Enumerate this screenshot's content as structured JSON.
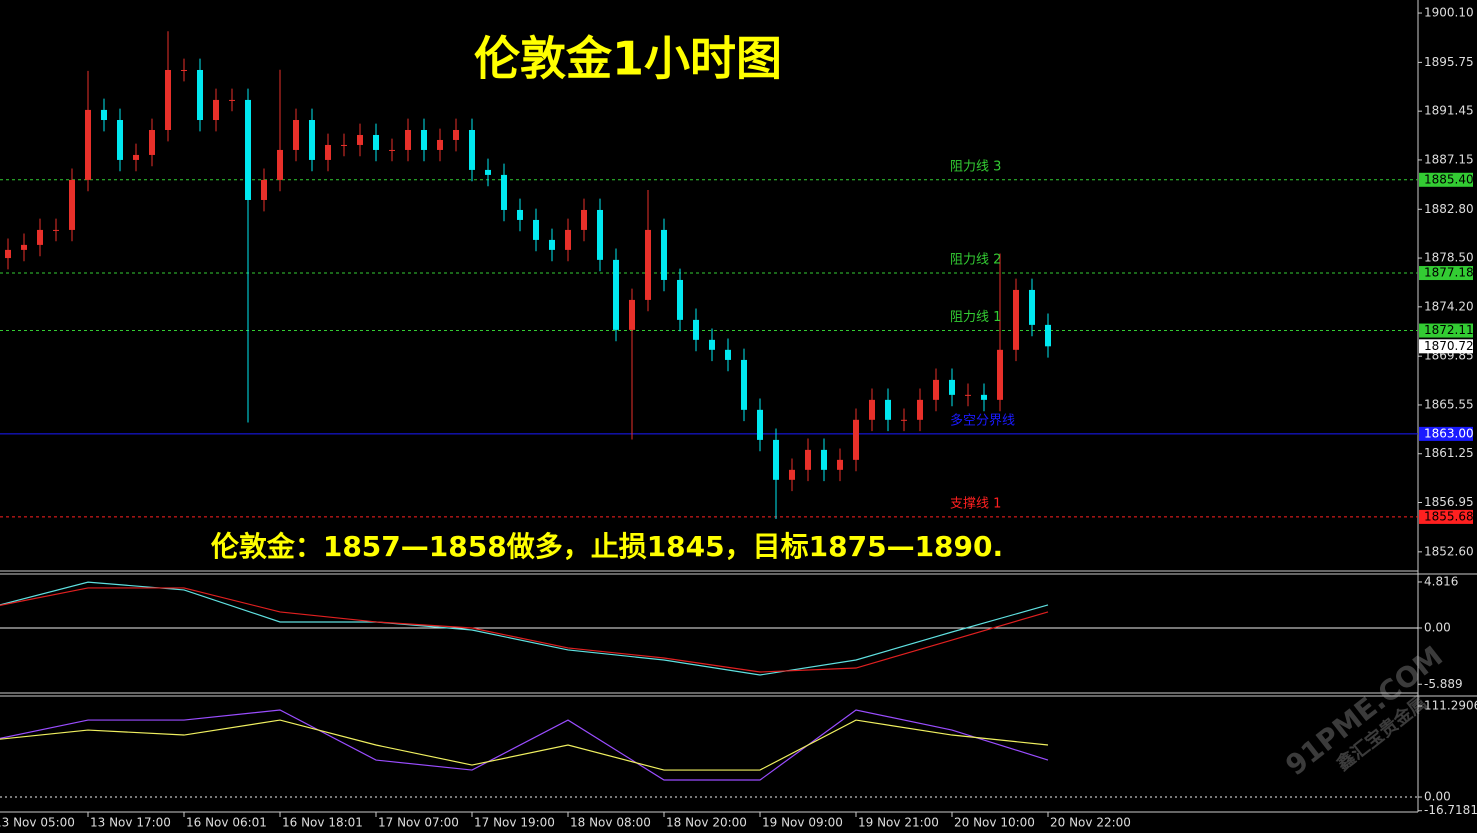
{
  "chart_data": [
    {
      "type": "candlestick",
      "title": "伦敦金1小时图",
      "annotation": "伦敦金：1857—1858做多，止损1845，目标1875—1890.",
      "categories": [
        "13 Nov 05:00",
        null,
        null,
        null,
        null,
        null,
        "13 Nov 17:00",
        null,
        null,
        null,
        null,
        null,
        "16 Nov 06:01",
        null,
        null,
        null,
        null,
        null,
        "16 Nov 18:01",
        null,
        null,
        null,
        null,
        null,
        "17 Nov 07:00",
        null,
        null,
        null,
        null,
        null,
        "17 Nov 19:00",
        null,
        null,
        null,
        null,
        null,
        "18 Nov 08:00",
        null,
        null,
        null,
        null,
        null,
        "18 Nov 20:00",
        null,
        null,
        null,
        null,
        null,
        "19 Nov 09:00",
        null,
        null,
        null,
        null,
        null,
        "19 Nov 21:00",
        null,
        null,
        null,
        null,
        null,
        "20 Nov 10:00",
        null,
        null,
        null,
        null,
        null,
        "20 Nov 22:00"
      ],
      "open": [
        1879.0,
        1878.5,
        1879.22,
        1879.66,
        1880.98,
        1880.98,
        1885.39,
        1891.56,
        1890.67,
        1887.15,
        1887.59,
        1889.79,
        1895.08,
        1895.08,
        1890.67,
        1892.44,
        1892.44,
        1883.62,
        1885.39,
        1888.03,
        1890.67,
        1887.15,
        1888.47,
        1888.47,
        1889.35,
        1888.03,
        1888.03,
        1889.79,
        1888.03,
        1888.91,
        1889.79,
        1886.27,
        1885.83,
        1882.74,
        1881.86,
        1880.1,
        1879.22,
        1880.98,
        1882.74,
        1878.34,
        1872.17,
        1874.81,
        1880.98,
        1876.57,
        1873.05,
        1871.29,
        1870.41,
        1869.52,
        1865.12,
        1862.47,
        1858.95,
        1859.83,
        1861.59,
        1859.83,
        1860.71,
        1864.24,
        1866.0,
        1864.24,
        1864.24,
        1866.0,
        1867.76,
        1866.44,
        1866.44,
        1866.0,
        1870.41,
        1875.69,
        1872.61
      ],
      "high": [
        1880.0,
        1880.22,
        1880.66,
        1881.98,
        1881.98,
        1886.39,
        1895.0,
        1892.56,
        1891.67,
        1888.59,
        1890.79,
        1898.5,
        1896.08,
        1896.08,
        1893.44,
        1893.44,
        1893.44,
        1886.39,
        1895.1,
        1891.67,
        1891.67,
        1889.47,
        1889.47,
        1890.35,
        1890.35,
        1889.03,
        1890.79,
        1890.79,
        1889.91,
        1890.79,
        1890.79,
        1887.27,
        1886.83,
        1883.74,
        1882.86,
        1881.1,
        1881.98,
        1883.74,
        1883.74,
        1879.34,
        1875.81,
        1884.5,
        1881.98,
        1877.57,
        1874.05,
        1872.29,
        1871.41,
        1870.52,
        1866.12,
        1863.47,
        1860.83,
        1862.59,
        1862.59,
        1861.71,
        1865.24,
        1867.0,
        1867.0,
        1865.24,
        1867.0,
        1868.76,
        1868.76,
        1867.44,
        1867.44,
        1878.9,
        1876.69,
        1876.69,
        1873.61
      ],
      "low": [
        1877.5,
        1877.5,
        1878.22,
        1878.66,
        1879.98,
        1879.98,
        1884.39,
        1889.67,
        1886.15,
        1886.15,
        1886.59,
        1888.79,
        1894.08,
        1889.67,
        1889.67,
        1891.44,
        1864.0,
        1882.62,
        1884.39,
        1887.03,
        1886.15,
        1886.15,
        1887.47,
        1887.47,
        1887.03,
        1887.03,
        1887.03,
        1887.03,
        1887.03,
        1887.91,
        1885.27,
        1884.83,
        1881.74,
        1880.86,
        1879.1,
        1878.22,
        1878.22,
        1879.98,
        1877.34,
        1871.17,
        1862.5,
        1873.81,
        1875.57,
        1872.05,
        1870.29,
        1869.41,
        1868.52,
        1864.12,
        1861.47,
        1855.5,
        1857.95,
        1858.83,
        1858.83,
        1858.83,
        1859.71,
        1863.24,
        1863.24,
        1863.24,
        1863.24,
        1865.0,
        1865.44,
        1865.44,
        1865.0,
        1865.0,
        1869.41,
        1871.61,
        1869.72
      ],
      "close": [
        1878.5,
        1879.22,
        1879.66,
        1880.98,
        1880.98,
        1885.39,
        1891.56,
        1890.67,
        1887.15,
        1887.59,
        1889.79,
        1895.08,
        1895.08,
        1890.67,
        1892.44,
        1892.44,
        1883.62,
        1885.39,
        1888.03,
        1890.67,
        1887.15,
        1888.47,
        1888.47,
        1889.35,
        1888.03,
        1888.03,
        1889.79,
        1888.03,
        1888.91,
        1889.79,
        1886.27,
        1885.83,
        1882.74,
        1881.86,
        1880.1,
        1879.22,
        1880.98,
        1882.74,
        1878.34,
        1872.17,
        1874.81,
        1880.98,
        1876.57,
        1873.05,
        1871.29,
        1870.41,
        1869.52,
        1865.12,
        1862.47,
        1858.95,
        1859.83,
        1861.59,
        1859.83,
        1860.71,
        1864.24,
        1866.0,
        1864.24,
        1864.24,
        1866.0,
        1867.76,
        1866.44,
        1866.44,
        1866.0,
        1870.41,
        1875.69,
        1872.61,
        1870.72
      ],
      "up_color": "#e8302a",
      "down_color": "#00e8f0",
      "ylim": [
        1851.0,
        1901.25
      ],
      "yticks": [
        {
          "value": 1900.1,
          "label": "1900.10"
        },
        1895.75,
        1891.45,
        1887.15,
        {
          "value": 1882.8,
          "label": "1882.80"
        },
        {
          "value": 1878.5,
          "label": "1878.50"
        },
        {
          "value": 1874.2,
          "label": "1874.20"
        },
        1869.85,
        1865.55,
        1861.25,
        1856.95,
        {
          "value": 1852.6,
          "label": "1852.60"
        }
      ],
      "levels": [
        {
          "name": "阻力线 3",
          "price": {
            "value": 1885.4,
            "label": "1885.40"
          },
          "color": "#33cc33",
          "style": "dashed"
        },
        {
          "name": "阻力线 2",
          "price": 1877.18,
          "color": "#33cc33",
          "style": "dashed"
        },
        {
          "name": "阻力线 1",
          "price": 1872.11,
          "color": "#33cc33",
          "style": "dashed"
        },
        {
          "name": "多空分界线",
          "price": {
            "value": 1863,
            "label": "1863.00"
          },
          "color": "#1a1aff",
          "style": "solid"
        },
        {
          "name": "支撑线 1",
          "price": 1855.68,
          "color": "#ff2020",
          "style": "dashed"
        }
      ],
      "last_price": 1870.72
    },
    {
      "type": "line",
      "x": [
        0,
        6,
        12,
        18,
        24,
        30,
        36,
        42,
        48,
        54,
        60,
        66
      ],
      "series": [
        {
          "color": "#5fe0e0",
          "values": [
            2.2,
            4.8,
            3.98,
            0.63,
            0.63,
            -0.21,
            -2.3,
            -3.35,
            -4.92,
            -3.35,
            -0.42,
            2.41
          ]
        },
        {
          "color": "#e02020",
          "values": [
            2.2,
            4.19,
            4.19,
            1.68,
            0.63,
            0,
            -2.09,
            -3.14,
            -4.61,
            -4.19,
            -1.26,
            1.68
          ]
        }
      ],
      "ylim": [
        -6.7,
        5.65
      ],
      "yticks": [
        4.816,
        {
          "value": 0,
          "label": "0.00"
        },
        -5.889
      ]
    },
    {
      "type": "line",
      "x": [
        0,
        6,
        12,
        18,
        24,
        30,
        36,
        42,
        48,
        54,
        60,
        66
      ],
      "series": [
        {
          "color": "#9a4dff",
          "values": [
            69.7,
            94.1,
            94.1,
            106.4,
            45.2,
            33.0,
            94.1,
            20.8,
            20.8,
            106.4,
            81.9,
            45.2
          ]
        },
        {
          "color": "#f0f060",
          "values": [
            69.7,
            81.9,
            75.8,
            94.1,
            63.6,
            39.1,
            63.6,
            33.0,
            33.0,
            94.1,
            75.8,
            63.6
          ]
        }
      ],
      "ylim": [
        -18.3,
        122.3
      ],
      "yticks": [
        111.2906,
        {
          "value": 0,
          "label": "0.00"
        },
        -16.7181
      ]
    }
  ],
  "watermark": {
    "site": "91PME.COM",
    "name": "鑫汇宝贵金属"
  }
}
